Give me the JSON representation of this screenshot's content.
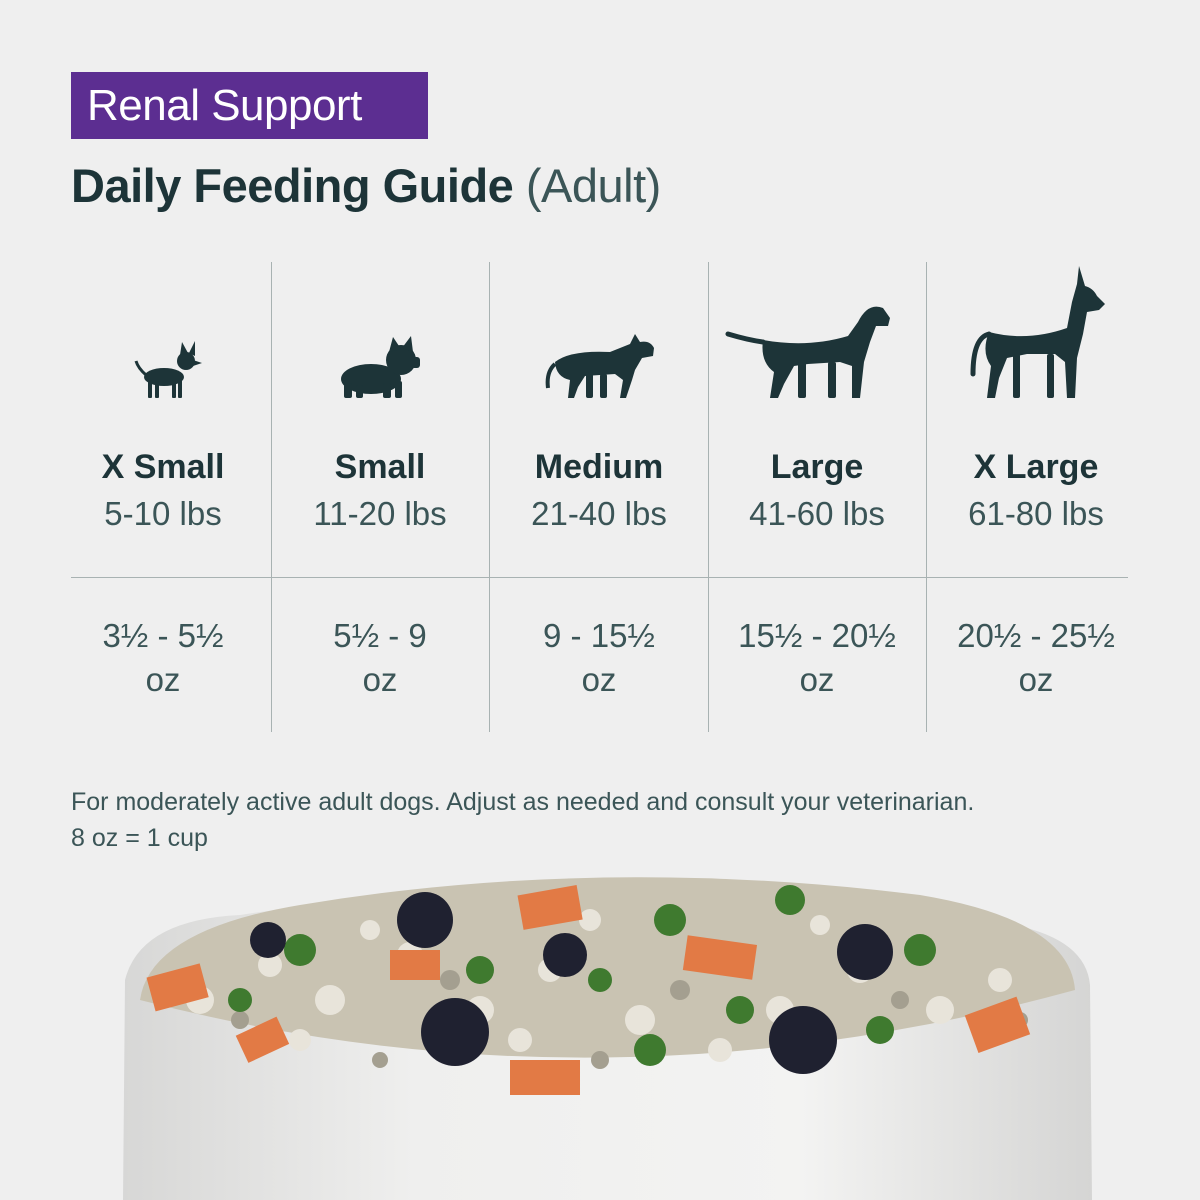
{
  "header": {
    "badge": "Renal Support",
    "title_main": "Daily Feeding Guide",
    "title_suffix": "(Adult)"
  },
  "sizes": [
    {
      "name": "X Small",
      "range": "5-10 lbs",
      "amount": "3½ - 5½",
      "unit": "oz",
      "icon": "chihuahua-icon"
    },
    {
      "name": "Small",
      "range": "11-20 lbs",
      "amount": "5½ - 9",
      "unit": "oz",
      "icon": "french-bulldog-icon"
    },
    {
      "name": "Medium",
      "range": "21-40 lbs",
      "amount": "9 - 15½",
      "unit": "oz",
      "icon": "pitbull-icon"
    },
    {
      "name": "Large",
      "range": "41-60 lbs",
      "amount": "15½ - 20½",
      "unit": "oz",
      "icon": "labrador-icon"
    },
    {
      "name": "X Large",
      "range": "61-80 lbs",
      "amount": "20½ - 25½",
      "unit": "oz",
      "icon": "great-dane-icon"
    }
  ],
  "note": {
    "line1": "For moderately active adult dogs. Adjust as needed and consult your veterinarian.",
    "line2": "8 oz = 1 cup"
  },
  "colors": {
    "badge": "#5c2e91",
    "text_dark": "#1d3438",
    "text_muted": "#3b5557",
    "background": "#efefef"
  }
}
